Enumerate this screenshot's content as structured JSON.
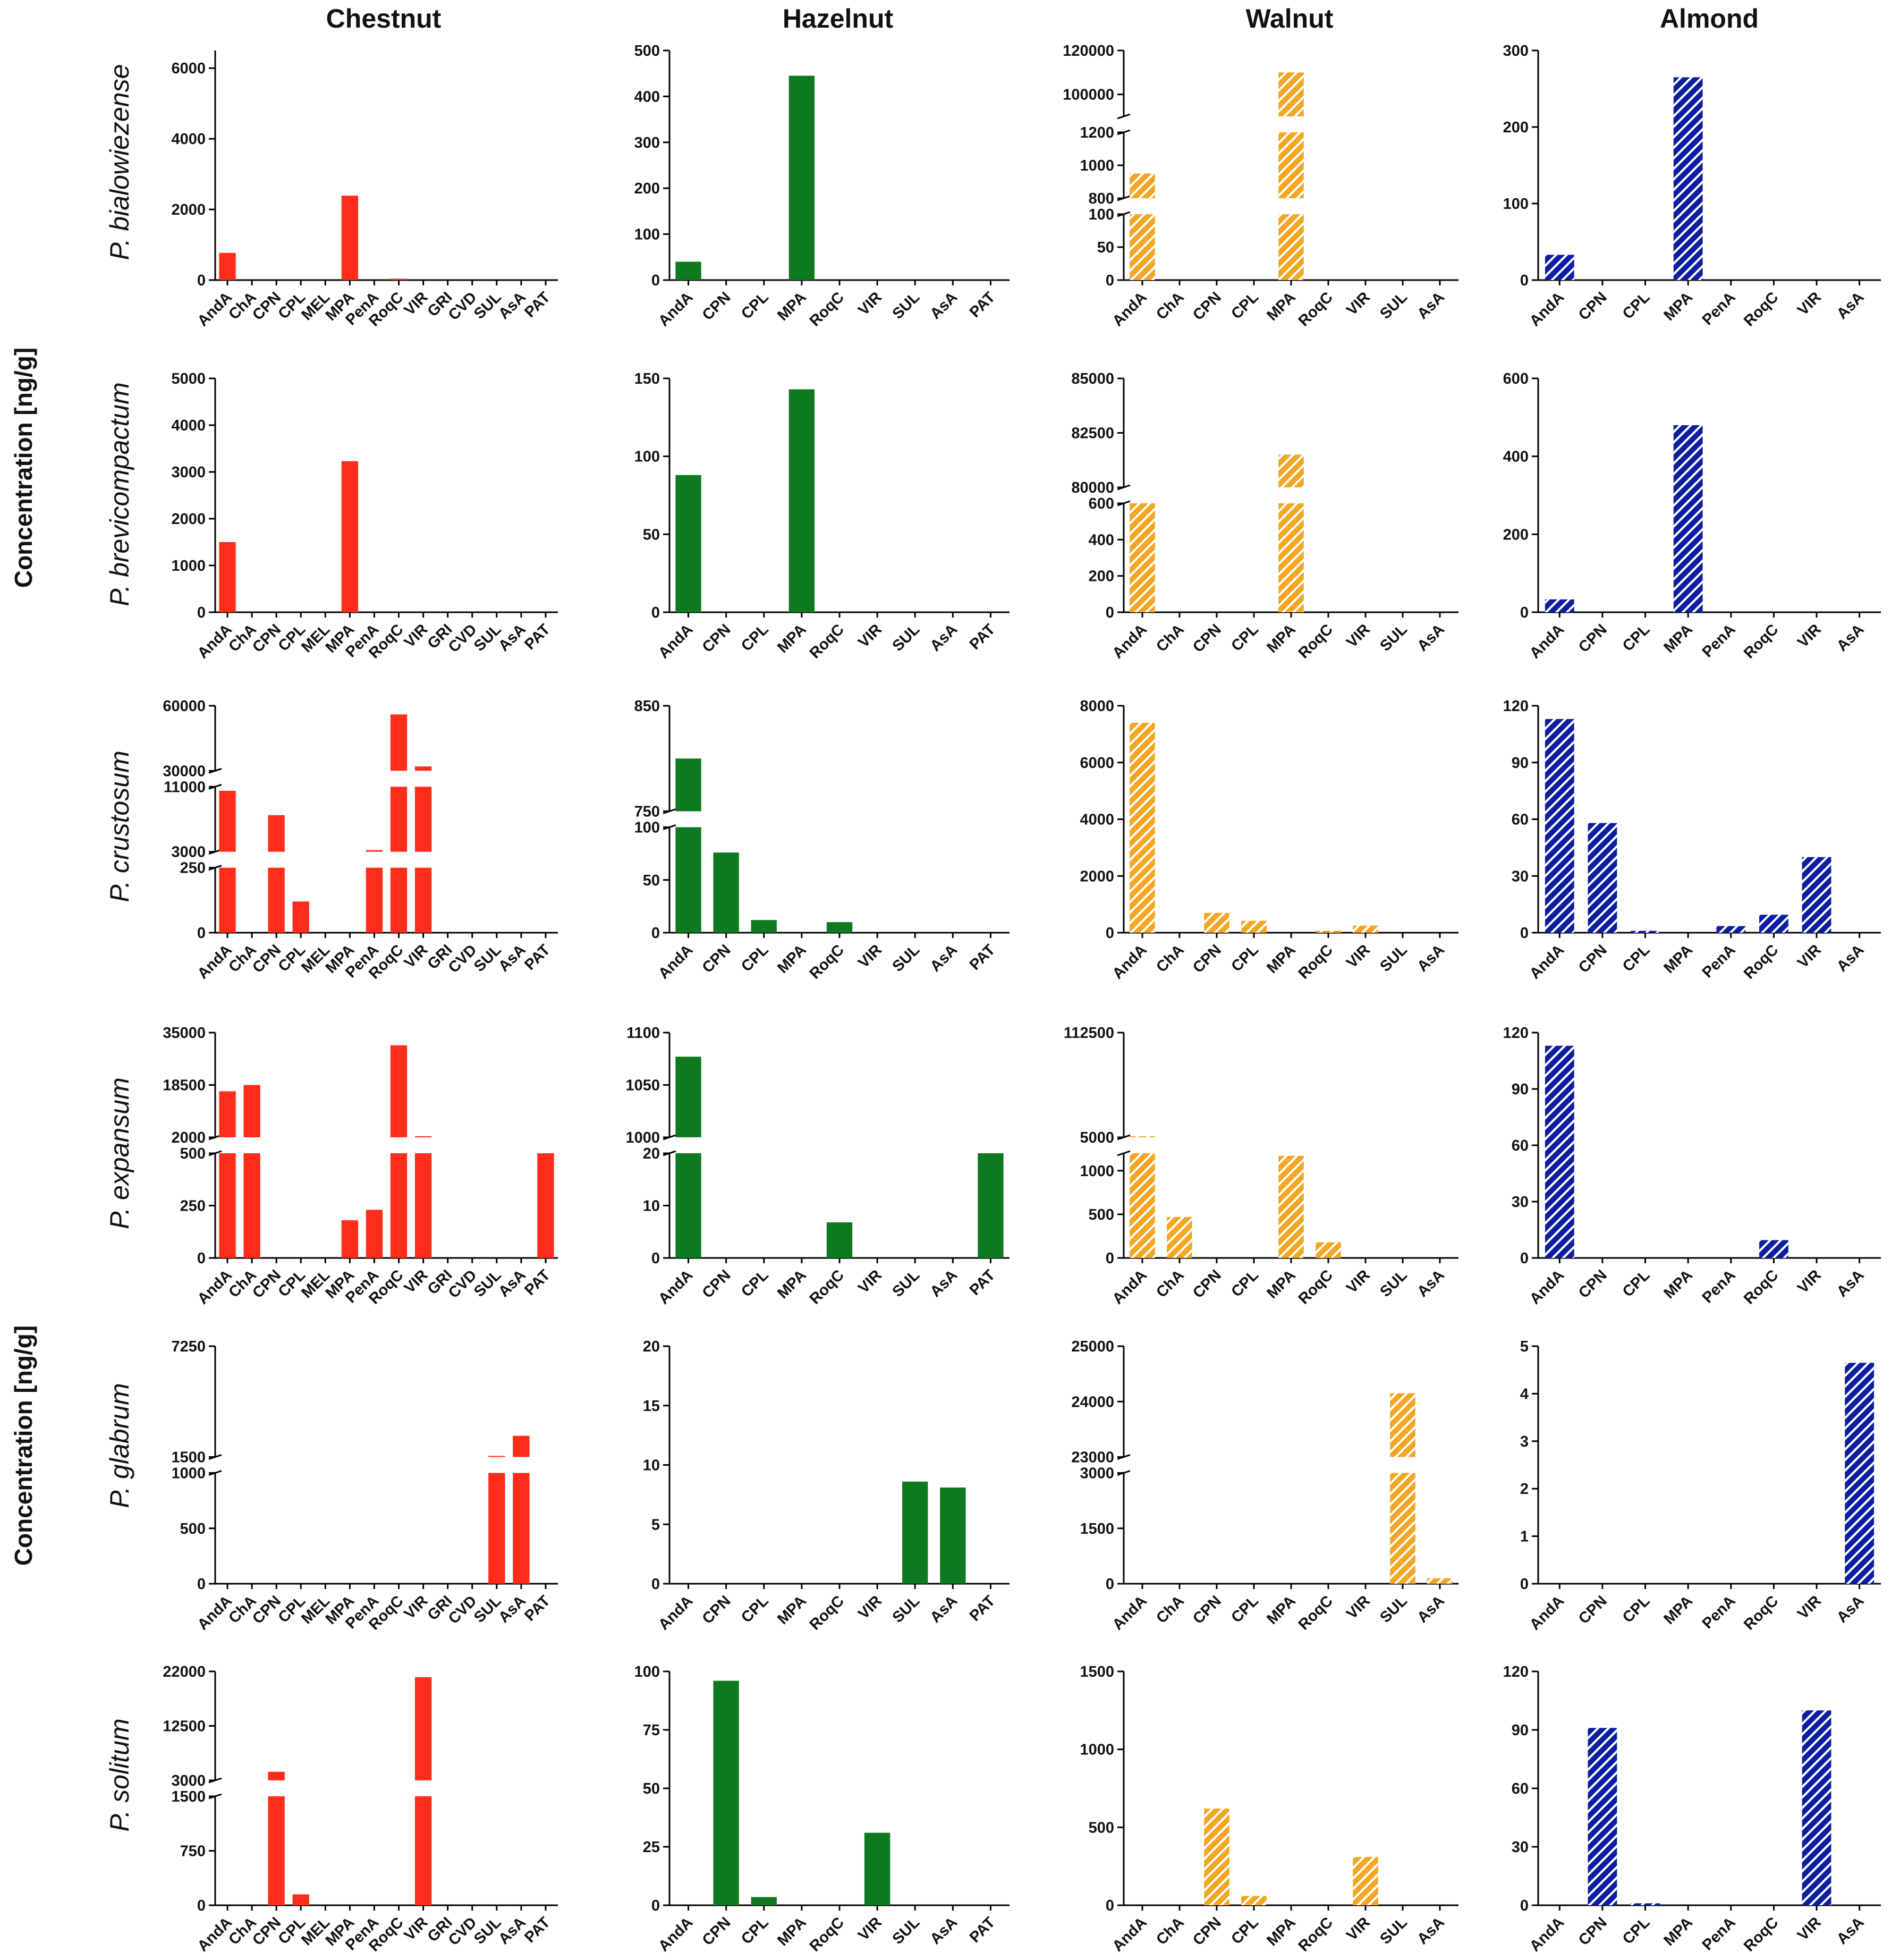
{
  "figure": {
    "column_titles": [
      "Chestnut",
      "Hazelnut",
      "Walnut",
      "Almond"
    ],
    "row_labels": [
      "P. bialowiezense",
      "P. brevicompactum",
      "P. crustosum",
      "P. expansum",
      "P. glabrum",
      "P. solitum"
    ],
    "side_labels": [
      "Concentration [ng/g]",
      "Concentration [ng/g]"
    ],
    "column_colors": [
      "#ff2d1a",
      "#0d7a1f",
      "#f5a623",
      "#0d1fa0"
    ],
    "column_fill_styles": [
      "solid",
      "solid",
      "hatch",
      "hatch"
    ],
    "axis_color": "#000000"
  },
  "chart_data": [
    {
      "id": "chestnut-bialowiezense",
      "type": "bar",
      "column": "Chestnut",
      "row": "P. bialowiezense",
      "categories": [
        "AndA",
        "ChA",
        "CPN",
        "CPL",
        "MEL",
        "MPA",
        "PenA",
        "RoqC",
        "VIR",
        "GRI",
        "CVD",
        "SUL",
        "AsA",
        "PAT"
      ],
      "values": [
        770,
        0,
        0,
        0,
        0,
        2390,
        0,
        40,
        0,
        0,
        0,
        0,
        0,
        0
      ],
      "segments": [
        {
          "range": [
            0,
            6500
          ],
          "ticks": [
            "0",
            "2000",
            "4000",
            "6000"
          ]
        }
      ]
    },
    {
      "id": "hazelnut-bialowiezense",
      "type": "bar",
      "column": "Hazelnut",
      "row": "P. bialowiezense",
      "categories": [
        "AndA",
        "CPN",
        "CPL",
        "MPA",
        "RoqC",
        "VIR",
        "SUL",
        "AsA",
        "PAT"
      ],
      "values": [
        40,
        0,
        0,
        445,
        0,
        0,
        0,
        0,
        0
      ],
      "segments": [
        {
          "range": [
            0,
            500
          ],
          "ticks": [
            "0",
            "100",
            "200",
            "300",
            "400",
            "500"
          ]
        }
      ]
    },
    {
      "id": "walnut-bialowiezense",
      "type": "bar",
      "column": "Walnut",
      "row": "P. bialowiezense",
      "categories": [
        "AndA",
        "ChA",
        "CPN",
        "CPL",
        "MPA",
        "RoqC",
        "VIR",
        "SUL",
        "AsA"
      ],
      "values": [
        950,
        0,
        0,
        0,
        110000,
        0,
        0,
        0,
        0
      ],
      "segments": [
        {
          "range": [
            0,
            100
          ],
          "ticks": [
            "0",
            "50",
            "100"
          ]
        },
        {
          "range": [
            800,
            1200
          ],
          "ticks": [
            "800",
            "1000",
            "1200"
          ]
        },
        {
          "range": [
            90000,
            120000
          ],
          "ticks": [
            "100000",
            "120000"
          ]
        }
      ]
    },
    {
      "id": "almond-bialowiezense",
      "type": "bar",
      "column": "Almond",
      "row": "P. bialowiezense",
      "categories": [
        "AndA",
        "CPN",
        "CPL",
        "MPA",
        "PenA",
        "RoqC",
        "VIR",
        "AsA"
      ],
      "values": [
        33,
        0,
        0,
        265,
        0,
        0,
        0,
        0
      ],
      "segments": [
        {
          "range": [
            0,
            300
          ],
          "ticks": [
            "0",
            "100",
            "200",
            "300"
          ]
        }
      ]
    },
    {
      "id": "chestnut-brevicompactum",
      "type": "bar",
      "column": "Chestnut",
      "row": "P. brevicompactum",
      "categories": [
        "AndA",
        "ChA",
        "CPN",
        "CPL",
        "MEL",
        "MPA",
        "PenA",
        "RoqC",
        "VIR",
        "GRI",
        "CVD",
        "SUL",
        "AsA",
        "PAT"
      ],
      "values": [
        1500,
        0,
        0,
        0,
        0,
        3230,
        0,
        0,
        0,
        0,
        0,
        0,
        0,
        0
      ],
      "segments": [
        {
          "range": [
            0,
            5000
          ],
          "ticks": [
            "0",
            "1000",
            "2000",
            "3000",
            "4000",
            "5000"
          ]
        }
      ]
    },
    {
      "id": "hazelnut-brevicompactum",
      "type": "bar",
      "column": "Hazelnut",
      "row": "P. brevicompactum",
      "categories": [
        "AndA",
        "CPN",
        "CPL",
        "MPA",
        "RoqC",
        "VIR",
        "SUL",
        "AsA",
        "PAT"
      ],
      "values": [
        88,
        0,
        0,
        143,
        0,
        0,
        0,
        0,
        0
      ],
      "segments": [
        {
          "range": [
            0,
            150
          ],
          "ticks": [
            "0",
            "50",
            "100",
            "150"
          ]
        }
      ]
    },
    {
      "id": "walnut-brevicompactum",
      "type": "bar",
      "column": "Walnut",
      "row": "P. brevicompactum",
      "categories": [
        "AndA",
        "ChA",
        "CPN",
        "CPL",
        "MPA",
        "RoqC",
        "VIR",
        "SUL",
        "AsA"
      ],
      "values": [
        600,
        0,
        0,
        0,
        81500,
        0,
        0,
        0,
        0
      ],
      "segments": [
        {
          "range": [
            0,
            600
          ],
          "ticks": [
            "0",
            "200",
            "400",
            "600"
          ]
        },
        {
          "range": [
            80000,
            85000
          ],
          "ticks": [
            "80000",
            "82500",
            "85000"
          ]
        }
      ]
    },
    {
      "id": "almond-brevicompactum",
      "type": "bar",
      "column": "Almond",
      "row": "P. brevicompactum",
      "categories": [
        "AndA",
        "CPN",
        "CPL",
        "MPA",
        "PenA",
        "RoqC",
        "VIR",
        "AsA"
      ],
      "values": [
        33,
        0,
        0,
        480,
        0,
        0,
        0,
        0
      ],
      "segments": [
        {
          "range": [
            0,
            600
          ],
          "ticks": [
            "0",
            "200",
            "400",
            "600"
          ]
        }
      ]
    },
    {
      "id": "chestnut-crustosum",
      "type": "bar",
      "column": "Chestnut",
      "row": "P. crustosum",
      "categories": [
        "AndA",
        "ChA",
        "CPN",
        "CPL",
        "MEL",
        "MPA",
        "PenA",
        "RoqC",
        "VIR",
        "GRI",
        "CVD",
        "SUL",
        "AsA",
        "PAT"
      ],
      "values": [
        10500,
        0,
        7500,
        120,
        0,
        0,
        3200,
        56000,
        32000,
        0,
        0,
        0,
        0,
        0
      ],
      "segments": [
        {
          "range": [
            0,
            250
          ],
          "ticks": [
            "0",
            "250"
          ]
        },
        {
          "range": [
            3000,
            11000
          ],
          "ticks": [
            "3000",
            "11000"
          ]
        },
        {
          "range": [
            30000,
            60000
          ],
          "ticks": [
            "30000",
            "60000"
          ]
        }
      ]
    },
    {
      "id": "hazelnut-crustosum",
      "type": "bar",
      "column": "Hazelnut",
      "row": "P. crustosum",
      "categories": [
        "AndA",
        "CPN",
        "CPL",
        "MPA",
        "RoqC",
        "VIR",
        "SUL",
        "AsA",
        "PAT"
      ],
      "values": [
        800,
        76,
        12,
        0,
        10,
        0,
        0,
        0,
        0
      ],
      "segments": [
        {
          "range": [
            0,
            100
          ],
          "ticks": [
            "0",
            "50",
            "100"
          ]
        },
        {
          "range": [
            750,
            850
          ],
          "ticks": [
            "750",
            "850"
          ]
        }
      ]
    },
    {
      "id": "walnut-crustosum",
      "type": "bar",
      "column": "Walnut",
      "row": "P. crustosum",
      "categories": [
        "AndA",
        "ChA",
        "CPN",
        "CPL",
        "MPA",
        "RoqC",
        "VIR",
        "SUL",
        "AsA"
      ],
      "values": [
        7400,
        0,
        700,
        420,
        0,
        70,
        250,
        0,
        0
      ],
      "segments": [
        {
          "range": [
            0,
            8000
          ],
          "ticks": [
            "0",
            "2000",
            "4000",
            "6000",
            "8000"
          ]
        }
      ]
    },
    {
      "id": "almond-crustosum",
      "type": "bar",
      "column": "Almond",
      "row": "P. crustosum",
      "categories": [
        "AndA",
        "CPN",
        "CPL",
        "MPA",
        "PenA",
        "RoqC",
        "VIR",
        "AsA"
      ],
      "values": [
        113,
        58,
        1,
        0,
        3.5,
        9.5,
        40,
        0
      ],
      "segments": [
        {
          "range": [
            0,
            120
          ],
          "ticks": [
            "0",
            "30",
            "60",
            "90",
            "120"
          ]
        }
      ]
    },
    {
      "id": "chestnut-expansum",
      "type": "bar",
      "column": "Chestnut",
      "row": "P. expansum",
      "categories": [
        "AndA",
        "ChA",
        "CPN",
        "CPL",
        "MEL",
        "MPA",
        "PenA",
        "RoqC",
        "VIR",
        "GRI",
        "CVD",
        "SUL",
        "AsA",
        "PAT"
      ],
      "values": [
        16500,
        18500,
        0,
        0,
        0,
        180,
        230,
        31000,
        2200,
        0,
        0,
        0,
        0,
        500
      ],
      "segments": [
        {
          "range": [
            0,
            500
          ],
          "ticks": [
            "0",
            "250",
            "500"
          ]
        },
        {
          "range": [
            2000,
            35000
          ],
          "ticks": [
            "2000",
            "18500",
            "35000"
          ]
        }
      ]
    },
    {
      "id": "hazelnut-expansum",
      "type": "bar",
      "column": "Hazelnut",
      "row": "P. expansum",
      "categories": [
        "AndA",
        "CPN",
        "CPL",
        "MPA",
        "RoqC",
        "VIR",
        "SUL",
        "AsA",
        "PAT"
      ],
      "values": [
        1077,
        0,
        0,
        0,
        6.8,
        0,
        0,
        0,
        20
      ],
      "segments": [
        {
          "range": [
            0,
            20
          ],
          "ticks": [
            "0",
            "10",
            "20"
          ]
        },
        {
          "range": [
            1000,
            1100
          ],
          "ticks": [
            "1000",
            "1050",
            "1100"
          ]
        }
      ]
    },
    {
      "id": "walnut-expansum",
      "type": "bar",
      "column": "Walnut",
      "row": "P. expansum",
      "categories": [
        "AndA",
        "ChA",
        "CPN",
        "CPL",
        "MPA",
        "RoqC",
        "VIR",
        "SUL",
        "AsA"
      ],
      "values": [
        5500,
        470,
        0,
        0,
        1170,
        180,
        0,
        0,
        0
      ],
      "segments": [
        {
          "range": [
            0,
            1200
          ],
          "ticks": [
            "0",
            "500",
            "1000"
          ]
        },
        {
          "range": [
            5000,
            112500
          ],
          "ticks": [
            "5000",
            "112500"
          ]
        }
      ]
    },
    {
      "id": "almond-expansum",
      "type": "bar",
      "column": "Almond",
      "row": "P. expansum",
      "categories": [
        "AndA",
        "CPN",
        "CPL",
        "MPA",
        "PenA",
        "RoqC",
        "VIR",
        "AsA"
      ],
      "values": [
        113,
        0,
        0,
        0,
        0,
        9.5,
        0,
        0
      ],
      "segments": [
        {
          "range": [
            0,
            120
          ],
          "ticks": [
            "0",
            "30",
            "60",
            "90",
            "120"
          ]
        }
      ]
    },
    {
      "id": "chestnut-glabrum",
      "type": "bar",
      "column": "Chestnut",
      "row": "P. glabrum",
      "categories": [
        "AndA",
        "ChA",
        "CPN",
        "CPL",
        "MEL",
        "MPA",
        "PenA",
        "RoqC",
        "VIR",
        "GRI",
        "CVD",
        "SUL",
        "AsA",
        "PAT"
      ],
      "values": [
        0,
        0,
        0,
        0,
        0,
        0,
        0,
        0,
        0,
        0,
        0,
        1550,
        2600,
        0
      ],
      "segments": [
        {
          "range": [
            0,
            1000
          ],
          "ticks": [
            "0",
            "500",
            "1000"
          ]
        },
        {
          "range": [
            1500,
            7250
          ],
          "ticks": [
            "1500",
            "7250"
          ]
        }
      ]
    },
    {
      "id": "hazelnut-glabrum",
      "type": "bar",
      "column": "Hazelnut",
      "row": "P. glabrum",
      "categories": [
        "AndA",
        "CPN",
        "CPL",
        "MPA",
        "RoqC",
        "VIR",
        "SUL",
        "AsA",
        "PAT"
      ],
      "values": [
        0,
        0,
        0,
        0,
        0,
        0,
        8.6,
        8.1,
        0
      ],
      "segments": [
        {
          "range": [
            0,
            20
          ],
          "ticks": [
            "0",
            "5",
            "10",
            "15",
            "20"
          ]
        }
      ]
    },
    {
      "id": "walnut-glabrum",
      "type": "bar",
      "column": "Walnut",
      "row": "P. glabrum",
      "categories": [
        "AndA",
        "ChA",
        "CPN",
        "CPL",
        "MPA",
        "RoqC",
        "VIR",
        "SUL",
        "AsA"
      ],
      "values": [
        0,
        0,
        0,
        0,
        0,
        0,
        0,
        24150,
        150
      ],
      "segments": [
        {
          "range": [
            0,
            3000
          ],
          "ticks": [
            "0",
            "1500",
            "3000"
          ]
        },
        {
          "range": [
            23000,
            25000
          ],
          "ticks": [
            "23000",
            "24000",
            "25000"
          ]
        }
      ]
    },
    {
      "id": "almond-glabrum",
      "type": "bar",
      "column": "Almond",
      "row": "P. glabrum",
      "categories": [
        "AndA",
        "CPN",
        "CPL",
        "MPA",
        "PenA",
        "RoqC",
        "VIR",
        "AsA"
      ],
      "values": [
        0,
        0,
        0,
        0,
        0,
        0,
        0,
        4.65
      ],
      "segments": [
        {
          "range": [
            0,
            5
          ],
          "ticks": [
            "0",
            "1",
            "2",
            "3",
            "4",
            "5"
          ]
        }
      ]
    },
    {
      "id": "chestnut-solitum",
      "type": "bar",
      "column": "Chestnut",
      "row": "P. solitum",
      "categories": [
        "AndA",
        "ChA",
        "CPN",
        "CPL",
        "MEL",
        "MPA",
        "PenA",
        "RoqC",
        "VIR",
        "GRI",
        "CVD",
        "SUL",
        "AsA",
        "PAT"
      ],
      "values": [
        0,
        0,
        4500,
        150,
        0,
        0,
        0,
        0,
        21000,
        0,
        0,
        0,
        0,
        0
      ],
      "segments": [
        {
          "range": [
            0,
            1500
          ],
          "ticks": [
            "0",
            "750",
            "1500"
          ]
        },
        {
          "range": [
            3000,
            22000
          ],
          "ticks": [
            "3000",
            "12500",
            "22000"
          ]
        }
      ]
    },
    {
      "id": "hazelnut-solitum",
      "type": "bar",
      "column": "Hazelnut",
      "row": "P. solitum",
      "categories": [
        "AndA",
        "CPN",
        "CPL",
        "MPA",
        "RoqC",
        "VIR",
        "SUL",
        "AsA",
        "PAT"
      ],
      "values": [
        0,
        96,
        3.5,
        0,
        0,
        31,
        0,
        0,
        0
      ],
      "segments": [
        {
          "range": [
            0,
            100
          ],
          "ticks": [
            "0",
            "25",
            "50",
            "75",
            "100"
          ]
        }
      ]
    },
    {
      "id": "walnut-solitum",
      "type": "bar",
      "column": "Walnut",
      "row": "P. solitum",
      "categories": [
        "AndA",
        "ChA",
        "CPN",
        "CPL",
        "MPA",
        "RoqC",
        "VIR",
        "SUL",
        "AsA"
      ],
      "values": [
        0,
        0,
        620,
        60,
        0,
        0,
        310,
        0,
        0
      ],
      "segments": [
        {
          "range": [
            0,
            1500
          ],
          "ticks": [
            "0",
            "500",
            "1000",
            "1500"
          ]
        }
      ]
    },
    {
      "id": "almond-solitum",
      "type": "bar",
      "column": "Almond",
      "row": "P. solitum",
      "categories": [
        "AndA",
        "CPN",
        "CPL",
        "MPA",
        "PenA",
        "RoqC",
        "VIR",
        "AsA"
      ],
      "values": [
        0,
        91,
        1,
        0,
        0,
        0,
        100,
        0
      ],
      "segments": [
        {
          "range": [
            0,
            120
          ],
          "ticks": [
            "0",
            "30",
            "60",
            "90",
            "120"
          ]
        }
      ]
    }
  ]
}
